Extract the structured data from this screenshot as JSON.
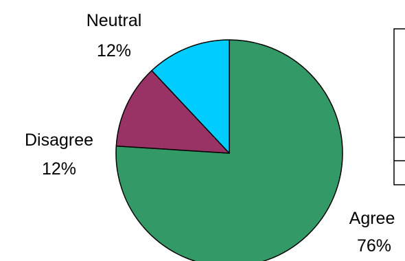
{
  "chart_data": {
    "type": "pie",
    "title": "",
    "start_angle_deg": 0,
    "direction": "clockwise",
    "slices": [
      {
        "label": "Agree",
        "value": 76,
        "percent_label": "76%",
        "color": "#339966"
      },
      {
        "label": "Disagree",
        "value": 12,
        "percent_label": "12%",
        "color": "#993366"
      },
      {
        "label": "Neutral",
        "value": 12,
        "percent_label": "12%",
        "color": "#00CCFF"
      }
    ],
    "legend": {
      "placement": "right",
      "entries": []
    }
  },
  "colors": {
    "outline": "#000000",
    "background": "#FFFFFF"
  }
}
